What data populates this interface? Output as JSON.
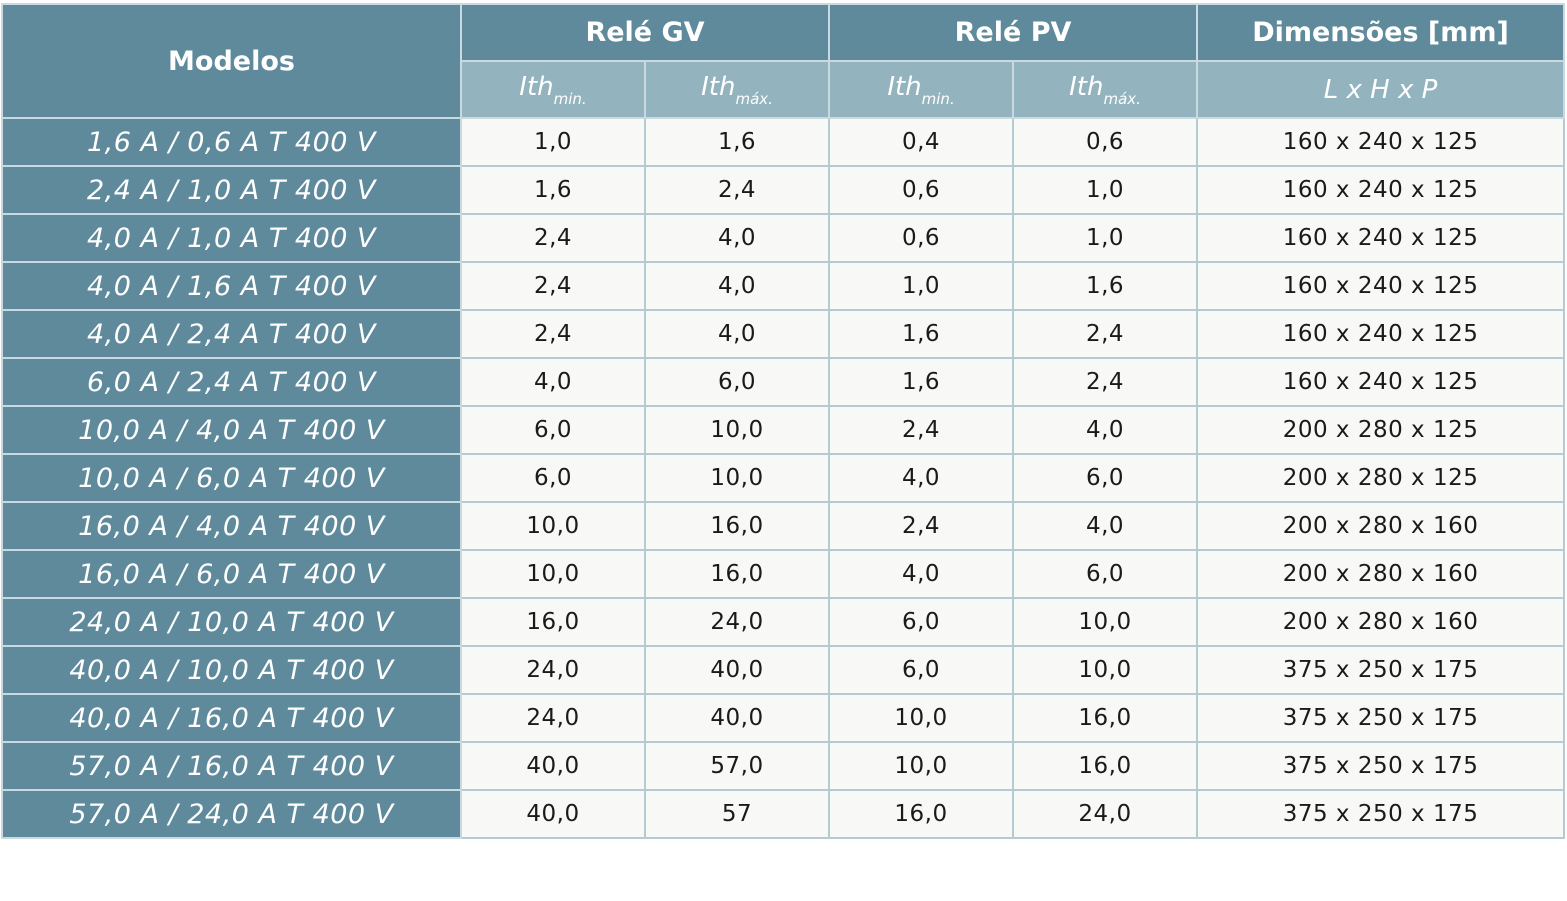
{
  "header": {
    "models_label": "Modelos",
    "rele_gv": "Relé GV",
    "rele_pv": "Relé PV",
    "dimensions": "Dimensões [mm]",
    "ith": "Ith",
    "min_sub": "min.",
    "max_sub": "máx.",
    "dims_sub": "L x H x P"
  },
  "rows": [
    {
      "model": "1,6 A / 0,6 A T 400 V",
      "gv_min": "1,0",
      "gv_max": "1,6",
      "pv_min": "0,4",
      "pv_max": "0,6",
      "dims": "160 x 240 x 125"
    },
    {
      "model": "2,4 A / 1,0 A T 400 V",
      "gv_min": "1,6",
      "gv_max": "2,4",
      "pv_min": "0,6",
      "pv_max": "1,0",
      "dims": "160 x 240 x 125"
    },
    {
      "model": "4,0 A / 1,0 A T 400 V",
      "gv_min": "2,4",
      "gv_max": "4,0",
      "pv_min": "0,6",
      "pv_max": "1,0",
      "dims": "160 x 240 x 125"
    },
    {
      "model": "4,0 A / 1,6 A T 400 V",
      "gv_min": "2,4",
      "gv_max": "4,0",
      "pv_min": "1,0",
      "pv_max": "1,6",
      "dims": "160 x 240 x 125"
    },
    {
      "model": "4,0 A / 2,4 A T 400 V",
      "gv_min": "2,4",
      "gv_max": "4,0",
      "pv_min": "1,6",
      "pv_max": "2,4",
      "dims": "160 x 240 x 125"
    },
    {
      "model": "6,0 A / 2,4 A T 400 V",
      "gv_min": "4,0",
      "gv_max": "6,0",
      "pv_min": "1,6",
      "pv_max": "2,4",
      "dims": "160 x 240 x 125"
    },
    {
      "model": "10,0 A / 4,0 A T 400 V",
      "gv_min": "6,0",
      "gv_max": "10,0",
      "pv_min": "2,4",
      "pv_max": "4,0",
      "dims": "200 x 280 x 125"
    },
    {
      "model": "10,0 A / 6,0 A T 400 V",
      "gv_min": "6,0",
      "gv_max": "10,0",
      "pv_min": "4,0",
      "pv_max": "6,0",
      "dims": "200 x 280 x 125"
    },
    {
      "model": "16,0 A / 4,0 A T 400 V",
      "gv_min": "10,0",
      "gv_max": "16,0",
      "pv_min": "2,4",
      "pv_max": "4,0",
      "dims": "200 x 280 x 160"
    },
    {
      "model": "16,0 A / 6,0 A T 400 V",
      "gv_min": "10,0",
      "gv_max": "16,0",
      "pv_min": "4,0",
      "pv_max": "6,0",
      "dims": "200 x 280 x 160"
    },
    {
      "model": "24,0 A / 10,0 A T 400 V",
      "gv_min": "16,0",
      "gv_max": "24,0",
      "pv_min": "6,0",
      "pv_max": "10,0",
      "dims": "200 x 280 x 160"
    },
    {
      "model": "40,0 A / 10,0 A T 400 V",
      "gv_min": "24,0",
      "gv_max": "40,0",
      "pv_min": "6,0",
      "pv_max": "10,0",
      "dims": "375 x 250 x 175"
    },
    {
      "model": "40,0 A / 16,0 A T 400 V",
      "gv_min": "24,0",
      "gv_max": "40,0",
      "pv_min": "10,0",
      "pv_max": "16,0",
      "dims": "375 x 250 x 175"
    },
    {
      "model": "57,0 A / 16,0 A T 400 V",
      "gv_min": "40,0",
      "gv_max": "57,0",
      "pv_min": "10,0",
      "pv_max": "16,0",
      "dims": "375 x 250 x 175"
    },
    {
      "model": "57,0 A / 24,0 A T 400 V",
      "gv_min": "40,0",
      "gv_max": "57",
      "pv_min": "16,0",
      "pv_max": "24,0",
      "dims": "375 x 250 x 175"
    }
  ]
}
